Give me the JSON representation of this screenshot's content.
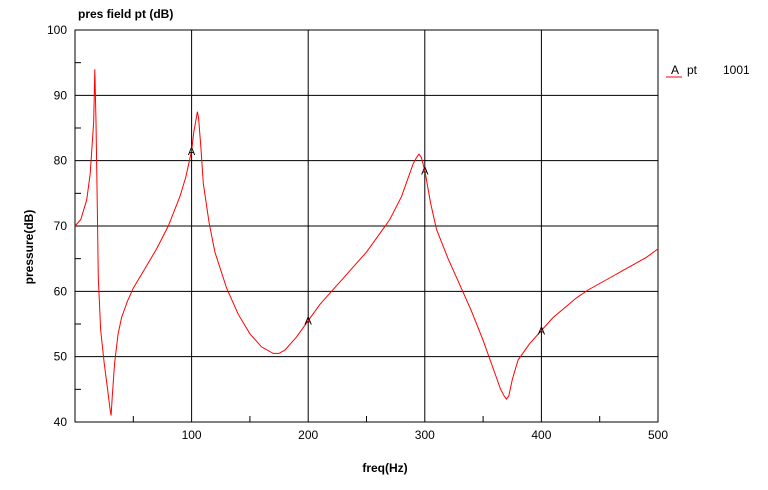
{
  "chart_data": {
    "type": "line",
    "title": "pres field pt (dB)",
    "xlabel": "freq(Hz)",
    "ylabel": "pressure(dB)",
    "xlim": [
      0,
      500
    ],
    "ylim": [
      40,
      100
    ],
    "x_ticks": [
      "100",
      "200",
      "300",
      "400",
      "500"
    ],
    "y_ticks": [
      "40",
      "50",
      "60",
      "70",
      "80",
      "90",
      "100"
    ],
    "grid": true,
    "legend_position": "right",
    "series": [
      {
        "name": "pt",
        "legend_marker": "A",
        "legend_value": "1001",
        "color": "#ff0000",
        "marker_label": "A",
        "marker_x": [
          100,
          200,
          300,
          400
        ],
        "x": [
          0,
          5,
          10,
          13,
          16,
          17,
          18,
          19,
          20,
          22,
          25,
          28,
          30,
          31,
          32,
          34,
          37,
          40,
          45,
          50,
          60,
          70,
          80,
          90,
          95,
          100,
          102,
          104,
          105,
          106,
          108,
          110,
          115,
          120,
          130,
          140,
          150,
          160,
          170,
          175,
          180,
          190,
          200,
          210,
          220,
          230,
          240,
          250,
          260,
          270,
          280,
          285,
          290,
          293,
          295,
          297,
          300,
          305,
          310,
          320,
          330,
          340,
          350,
          360,
          365,
          368,
          370,
          372,
          375,
          380,
          390,
          400,
          410,
          420,
          430,
          440,
          450,
          460,
          470,
          480,
          490,
          500
        ],
        "y": [
          70,
          71,
          74,
          78,
          86,
          94,
          86,
          74,
          62,
          54,
          49,
          45,
          42,
          41,
          44,
          49,
          53.5,
          56,
          58.5,
          60.5,
          63.5,
          66.5,
          70,
          74.5,
          77.5,
          81.5,
          84.5,
          86.5,
          87.5,
          86.5,
          82,
          76.5,
          70.5,
          66,
          60.5,
          56.5,
          53.5,
          51.5,
          50.5,
          50.5,
          51,
          53,
          55.5,
          58,
          60,
          62,
          64,
          66,
          68.5,
          71,
          74.5,
          77,
          79.5,
          80.5,
          81,
          80.5,
          78.5,
          73.5,
          69.5,
          65,
          61,
          57,
          52.5,
          47.5,
          45,
          44,
          43.5,
          44,
          46.5,
          49.5,
          52,
          54,
          56,
          57.5,
          59,
          60.2,
          61.2,
          62.2,
          63.2,
          64.2,
          65.2,
          66.5
        ]
      }
    ]
  }
}
